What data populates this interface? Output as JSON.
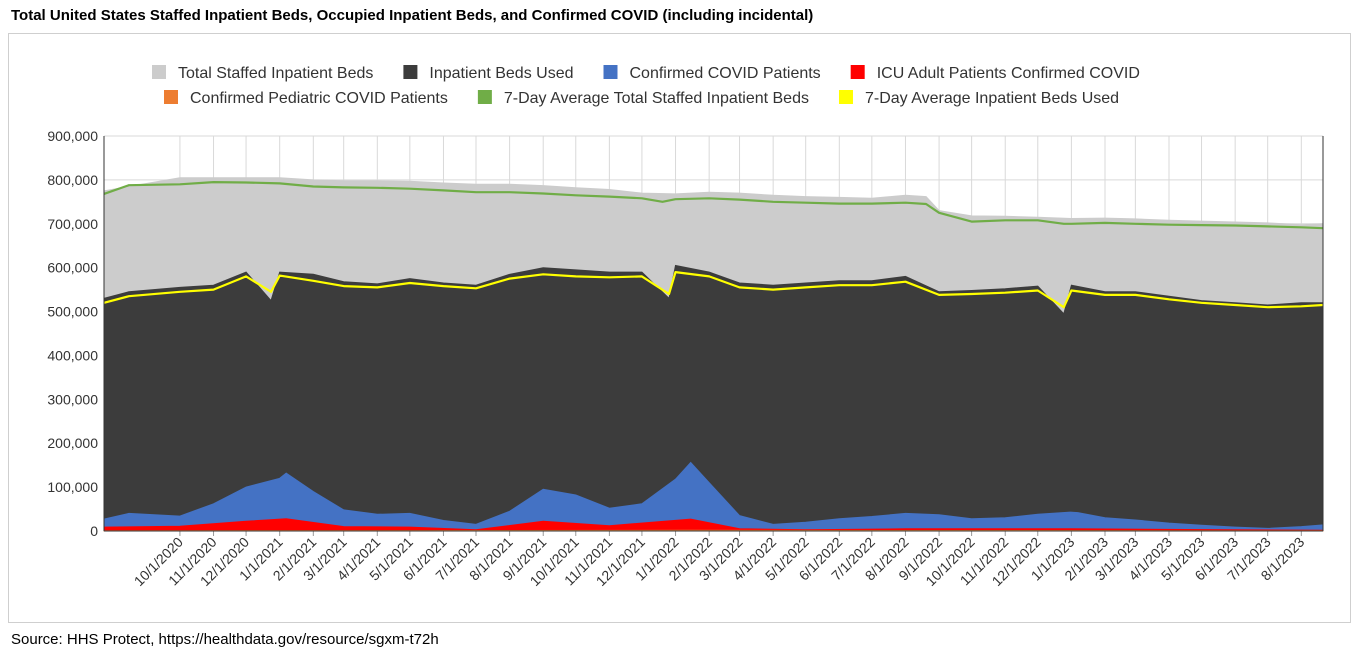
{
  "title": "Total United States Staffed Inpatient Beds, Occupied Inpatient Beds, and Confirmed COVID (including incidental)",
  "source": "Source: HHS Protect, https://healthdata.gov/resource/sgxm-t72h",
  "chart_data": {
    "type": "area",
    "title": "Total United States Staffed Inpatient Beds, Occupied Inpatient Beds, and Confirmed COVID (including incidental)",
    "xlabel": "",
    "ylabel": "",
    "ylim": [
      0,
      900000
    ],
    "y_ticks": [
      "0",
      "100,000",
      "200,000",
      "300,000",
      "400,000",
      "500,000",
      "600,000",
      "700,000",
      "800,000",
      "900,000"
    ],
    "x_ticks": [
      "10/1/2020",
      "11/1/2020",
      "12/1/2020",
      "1/1/2021",
      "2/1/2021",
      "3/1/2021",
      "4/1/2021",
      "5/1/2021",
      "6/1/2021",
      "7/1/2021",
      "8/1/2021",
      "9/1/2021",
      "10/1/2021",
      "11/1/2021",
      "12/1/2021",
      "1/1/2022",
      "2/1/2022",
      "3/1/2022",
      "4/1/2022",
      "5/1/2022",
      "6/1/2022",
      "7/1/2022",
      "8/1/2022",
      "9/1/2022",
      "10/1/2022",
      "11/1/2022",
      "12/1/2022",
      "1/1/2023",
      "2/1/2023",
      "3/1/2023",
      "4/1/2023",
      "5/1/2023",
      "6/1/2023",
      "7/1/2023",
      "8/1/2023"
    ],
    "x_range": [
      "7/23/2020",
      "8/21/2023"
    ],
    "grid": true,
    "legend_position": "top",
    "series": [
      {
        "name": "Total Staffed Inpatient Beds",
        "kind": "area",
        "color": "#cccccc",
        "x": [
          "7/23/2020",
          "8/15/2020",
          "10/1/2020",
          "11/1/2020",
          "12/1/2020",
          "1/1/2021",
          "2/1/2021",
          "3/1/2021",
          "4/1/2021",
          "5/1/2021",
          "6/1/2021",
          "7/1/2021",
          "8/1/2021",
          "9/1/2021",
          "10/1/2021",
          "11/1/2021",
          "12/1/2021",
          "1/1/2022",
          "2/1/2022",
          "3/1/2022",
          "4/1/2022",
          "5/1/2022",
          "6/1/2022",
          "7/1/2022",
          "8/1/2022",
          "8/20/2022",
          "9/1/2022",
          "10/1/2022",
          "11/1/2022",
          "12/1/2022",
          "1/1/2023",
          "2/1/2023",
          "3/1/2023",
          "4/1/2023",
          "5/1/2023",
          "6/1/2023",
          "7/1/2023",
          "8/1/2023",
          "8/21/2023"
        ],
        "values": [
          775000,
          785000,
          805000,
          805000,
          805000,
          805000,
          800000,
          798000,
          798000,
          797000,
          793000,
          790000,
          790000,
          787000,
          782000,
          778000,
          770000,
          768000,
          772000,
          770000,
          765000,
          762000,
          760000,
          758000,
          765000,
          762000,
          730000,
          718000,
          717000,
          715000,
          712000,
          713000,
          711000,
          708000,
          706000,
          704000,
          702000,
          698000,
          700000
        ]
      },
      {
        "name": "Inpatient Beds Used",
        "kind": "area",
        "color": "#3c3c3c",
        "x": [
          "7/23/2020",
          "8/15/2020",
          "10/1/2020",
          "11/1/2020",
          "12/1/2020",
          "12/24/2020",
          "1/1/2021",
          "2/1/2021",
          "3/1/2021",
          "4/1/2021",
          "5/1/2021",
          "6/1/2021",
          "7/1/2021",
          "8/1/2021",
          "9/1/2021",
          "10/1/2021",
          "11/1/2021",
          "12/1/2021",
          "12/26/2021",
          "1/1/2022",
          "2/1/2022",
          "3/1/2022",
          "4/1/2022",
          "5/1/2022",
          "6/1/2022",
          "7/1/2022",
          "8/1/2022",
          "9/1/2022",
          "10/1/2022",
          "11/1/2022",
          "12/1/2022",
          "12/25/2022",
          "1/1/2023",
          "2/1/2023",
          "3/1/2023",
          "4/1/2023",
          "5/1/2023",
          "6/1/2023",
          "7/1/2023",
          "8/1/2023",
          "8/21/2023"
        ],
        "values": [
          530000,
          545000,
          555000,
          560000,
          590000,
          525000,
          590000,
          585000,
          568000,
          563000,
          575000,
          565000,
          560000,
          585000,
          600000,
          595000,
          590000,
          590000,
          530000,
          605000,
          590000,
          565000,
          560000,
          565000,
          570000,
          570000,
          580000,
          545000,
          548000,
          552000,
          558000,
          495000,
          560000,
          545000,
          545000,
          535000,
          525000,
          520000,
          515000,
          520000,
          520000
        ]
      },
      {
        "name": "Confirmed COVID Patients",
        "kind": "area",
        "color": "#4472c4",
        "x": [
          "7/23/2020",
          "8/15/2020",
          "10/1/2020",
          "11/1/2020",
          "12/1/2020",
          "1/1/2021",
          "1/7/2021",
          "2/1/2021",
          "3/1/2021",
          "4/1/2021",
          "5/1/2021",
          "6/1/2021",
          "7/1/2021",
          "8/1/2021",
          "9/1/2021",
          "10/1/2021",
          "11/1/2021",
          "12/1/2021",
          "1/1/2022",
          "1/15/2022",
          "2/1/2022",
          "3/1/2022",
          "4/1/2022",
          "5/1/2022",
          "6/1/2022",
          "7/1/2022",
          "8/1/2022",
          "9/1/2022",
          "10/1/2022",
          "11/1/2022",
          "12/1/2022",
          "12/31/2022",
          "1/7/2023",
          "2/1/2023",
          "3/1/2023",
          "4/1/2023",
          "5/1/2023",
          "6/1/2023",
          "7/1/2023",
          "8/1/2023",
          "8/21/2023"
        ],
        "values": [
          27000,
          40000,
          34000,
          62000,
          100000,
          120000,
          132000,
          90000,
          48000,
          38000,
          40000,
          24000,
          15000,
          45000,
          95000,
          82000,
          52000,
          62000,
          118000,
          156000,
          110000,
          35000,
          15000,
          20000,
          28000,
          33000,
          40000,
          37000,
          28000,
          30000,
          38000,
          43000,
          42000,
          30000,
          25000,
          18000,
          13000,
          9000,
          6000,
          10000,
          14000
        ]
      },
      {
        "name": "ICU Adult Patients Confirmed COVID",
        "kind": "area",
        "color": "#ff0000",
        "x": [
          "7/23/2020",
          "10/1/2020",
          "12/1/2020",
          "1/7/2021",
          "3/1/2021",
          "5/1/2021",
          "7/1/2021",
          "9/1/2021",
          "11/1/2021",
          "1/15/2022",
          "3/1/2022",
          "5/1/2022",
          "8/1/2022",
          "1/1/2023",
          "8/21/2023"
        ],
        "values": [
          9000,
          11000,
          22000,
          28000,
          10000,
          9000,
          3000,
          22000,
          12000,
          27000,
          5000,
          3000,
          5000,
          5000,
          1500
        ]
      },
      {
        "name": "Confirmed Pediatric COVID Patients",
        "kind": "area",
        "color": "#ed7d31",
        "x": [
          "7/23/2020",
          "1/15/2022",
          "8/21/2023"
        ],
        "values": [
          500,
          1500,
          500
        ]
      },
      {
        "name": "7-Day Average Total Staffed Inpatient Beds",
        "kind": "line",
        "color": "#70ad47",
        "x": [
          "7/23/2020",
          "8/15/2020",
          "10/1/2020",
          "11/1/2020",
          "12/1/2020",
          "1/1/2021",
          "2/1/2021",
          "3/1/2021",
          "4/1/2021",
          "5/1/2021",
          "6/1/2021",
          "7/1/2021",
          "8/1/2021",
          "9/1/2021",
          "10/1/2021",
          "11/1/2021",
          "12/1/2021",
          "12/20/2021",
          "1/1/2022",
          "2/1/2022",
          "3/1/2022",
          "4/1/2022",
          "5/1/2022",
          "6/1/2022",
          "7/1/2022",
          "8/1/2022",
          "8/20/2022",
          "9/1/2022",
          "10/1/2022",
          "11/1/2022",
          "12/1/2022",
          "12/25/2022",
          "1/1/2023",
          "2/1/2023",
          "3/1/2023",
          "4/1/2023",
          "5/1/2023",
          "6/1/2023",
          "7/1/2023",
          "8/1/2023",
          "8/21/2023"
        ],
        "values": [
          768000,
          788000,
          790000,
          795000,
          794000,
          792000,
          785000,
          783000,
          782000,
          780000,
          776000,
          772000,
          772000,
          769000,
          765000,
          762000,
          758000,
          750000,
          756000,
          758000,
          755000,
          750000,
          748000,
          746000,
          746000,
          748000,
          745000,
          725000,
          705000,
          708000,
          708000,
          700000,
          700000,
          702000,
          700000,
          698000,
          697000,
          696000,
          694000,
          692000,
          690000
        ]
      },
      {
        "name": "7-Day Average Inpatient Beds Used",
        "kind": "line",
        "color": "#ffff00",
        "x": [
          "7/23/2020",
          "8/15/2020",
          "10/1/2020",
          "11/1/2020",
          "12/1/2020",
          "12/24/2020",
          "1/1/2021",
          "2/1/2021",
          "3/1/2021",
          "4/1/2021",
          "5/1/2021",
          "6/1/2021",
          "7/1/2021",
          "8/1/2021",
          "9/1/2021",
          "10/1/2021",
          "11/1/2021",
          "12/1/2021",
          "12/26/2021",
          "1/1/2022",
          "2/1/2022",
          "3/1/2022",
          "4/1/2022",
          "5/1/2022",
          "6/1/2022",
          "7/1/2022",
          "8/1/2022",
          "9/1/2022",
          "10/1/2022",
          "11/1/2022",
          "12/1/2022",
          "12/25/2022",
          "1/1/2023",
          "2/1/2023",
          "3/1/2023",
          "4/1/2023",
          "5/1/2023",
          "6/1/2023",
          "7/1/2023",
          "8/1/2023",
          "8/21/2023"
        ],
        "values": [
          520000,
          535000,
          545000,
          550000,
          580000,
          545000,
          582000,
          570000,
          558000,
          555000,
          565000,
          558000,
          553000,
          575000,
          585000,
          580000,
          578000,
          580000,
          540000,
          590000,
          580000,
          555000,
          550000,
          555000,
          560000,
          560000,
          568000,
          538000,
          540000,
          543000,
          548000,
          510000,
          548000,
          538000,
          538000,
          528000,
          520000,
          515000,
          510000,
          512000,
          515000
        ]
      }
    ]
  }
}
